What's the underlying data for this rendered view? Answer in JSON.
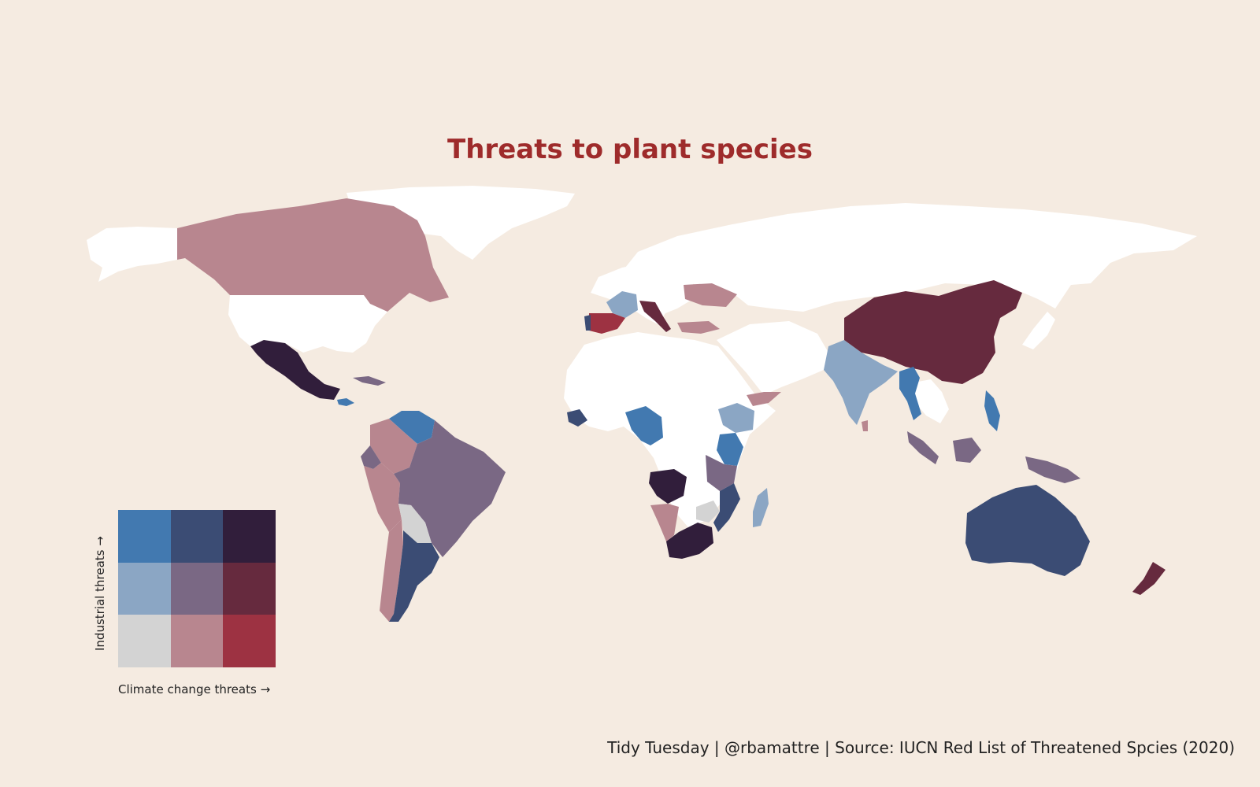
{
  "title": "Threats to plant species",
  "caption": "Tidy Tuesday | @rbamattre | Source: IUCN Red List of Threatened Spcies (2020)",
  "colors": {
    "background": "#f5ebe1",
    "no_data": "#ffffff",
    "title": "#9e2b2b"
  },
  "legend": {
    "x_label": "Climate change threats →",
    "y_label": "Industrial threats →",
    "grid": [
      [
        "#4279b0",
        "#3b4c74",
        "#311e3b"
      ],
      [
        "#8ba6c4",
        "#7a6884",
        "#662a3e"
      ],
      [
        "#d3d3d3",
        "#b8868f",
        "#9d3242"
      ]
    ]
  },
  "regions": [
    {
      "name": "Canada",
      "fill": "#b8868f"
    },
    {
      "name": "United States",
      "fill": "#ffffff"
    },
    {
      "name": "Mexico",
      "fill": "#311e3b"
    },
    {
      "name": "Greenland",
      "fill": "#ffffff"
    },
    {
      "name": "Alaska",
      "fill": "#ffffff"
    },
    {
      "name": "Cuba",
      "fill": "#7a6884"
    },
    {
      "name": "Honduras",
      "fill": "#4279b0"
    },
    {
      "name": "Venezuela",
      "fill": "#4279b0"
    },
    {
      "name": "Colombia",
      "fill": "#b8868f"
    },
    {
      "name": "Ecuador",
      "fill": "#7a6884"
    },
    {
      "name": "Peru",
      "fill": "#b8868f"
    },
    {
      "name": "Brazil",
      "fill": "#7a6884"
    },
    {
      "name": "Bolivia",
      "fill": "#d3d3d3"
    },
    {
      "name": "Chile",
      "fill": "#b8868f"
    },
    {
      "name": "Argentina",
      "fill": "#3b4c74"
    },
    {
      "name": "Russia",
      "fill": "#ffffff"
    },
    {
      "name": "Europe",
      "fill": "#ffffff"
    },
    {
      "name": "France",
      "fill": "#8ba6c4"
    },
    {
      "name": "Spain",
      "fill": "#9d3242"
    },
    {
      "name": "Portugal",
      "fill": "#3b4c74"
    },
    {
      "name": "Italy",
      "fill": "#662a3e"
    },
    {
      "name": "Ukraine",
      "fill": "#b8868f"
    },
    {
      "name": "Turkey",
      "fill": "#b8868f"
    },
    {
      "name": "Africa",
      "fill": "#ffffff"
    },
    {
      "name": "Guinea",
      "fill": "#3b4c74"
    },
    {
      "name": "DR Congo",
      "fill": "#4279b0"
    },
    {
      "name": "Ethiopia",
      "fill": "#8ba6c4"
    },
    {
      "name": "Kenya",
      "fill": "#4279b0"
    },
    {
      "name": "Tanzania",
      "fill": "#7a6884"
    },
    {
      "name": "Angola",
      "fill": "#311e3b"
    },
    {
      "name": "Namibia",
      "fill": "#b8868f"
    },
    {
      "name": "Zimbabwe",
      "fill": "#d3d3d3"
    },
    {
      "name": "Mozambique",
      "fill": "#3b4c74"
    },
    {
      "name": "South Africa",
      "fill": "#311e3b"
    },
    {
      "name": "Madagascar",
      "fill": "#8ba6c4"
    },
    {
      "name": "Yemen",
      "fill": "#b8868f"
    },
    {
      "name": "Middle East",
      "fill": "#ffffff"
    },
    {
      "name": "India",
      "fill": "#8ba6c4"
    },
    {
      "name": "Sri Lanka",
      "fill": "#b8868f"
    },
    {
      "name": "China",
      "fill": "#662a3e"
    },
    {
      "name": "Myanmar",
      "fill": "#4279b0"
    },
    {
      "name": "Mainland SE Asia",
      "fill": "#ffffff"
    },
    {
      "name": "Philippines",
      "fill": "#4279b0"
    },
    {
      "name": "Japan",
      "fill": "#ffffff"
    },
    {
      "name": "Sumatra",
      "fill": "#7a6884"
    },
    {
      "name": "Borneo",
      "fill": "#7a6884"
    },
    {
      "name": "New Guinea",
      "fill": "#7a6884"
    },
    {
      "name": "Australia",
      "fill": "#3b4c74"
    },
    {
      "name": "New Zealand",
      "fill": "#662a3e"
    }
  ]
}
